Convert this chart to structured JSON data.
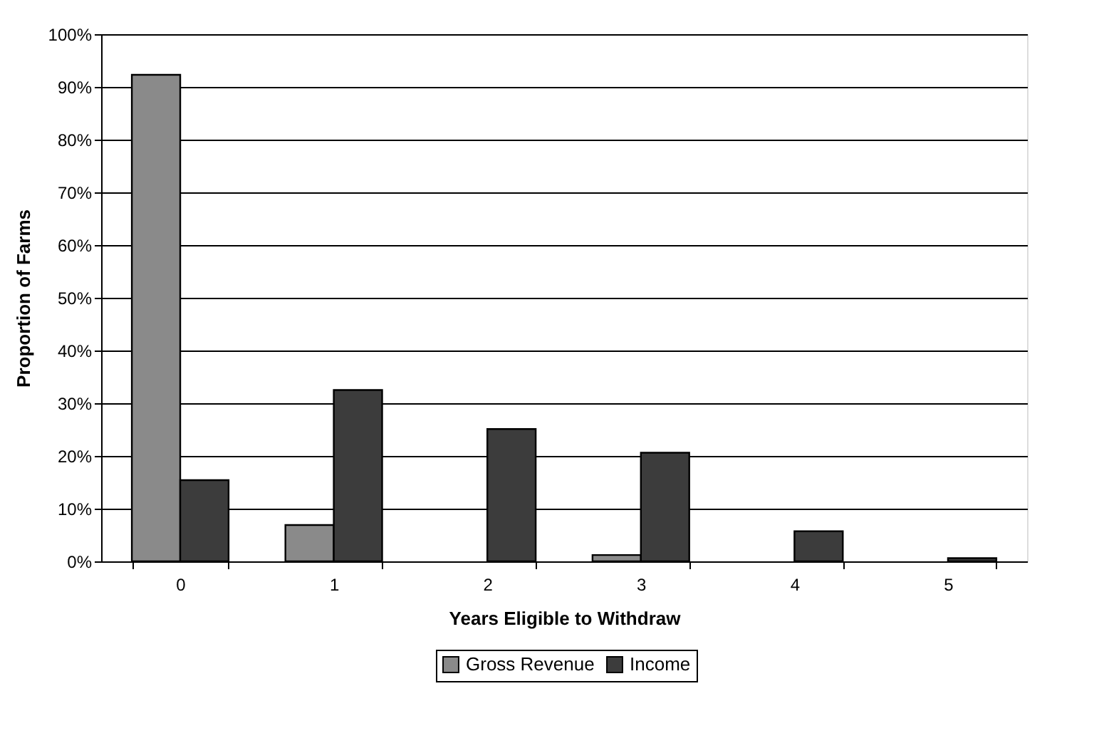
{
  "chart_data": {
    "type": "bar",
    "xlabel": "Years Eligible to Withdraw",
    "ylabel": "Proportion of Farms",
    "categories": [
      "0",
      "1",
      "2",
      "3",
      "4",
      "5"
    ],
    "series": [
      {
        "name": "Gross Revenue",
        "color": "#8a8a8a",
        "values": [
          92.3,
          6.9,
          0,
          1.2,
          0,
          0
        ]
      },
      {
        "name": "Income",
        "color": "#3c3c3c",
        "values": [
          15.4,
          32.5,
          25.1,
          20.6,
          5.7,
          0.6
        ]
      }
    ],
    "ylim": [
      0,
      100
    ],
    "yticks": [
      {
        "value": 0,
        "label": "0%"
      },
      {
        "value": 10,
        "label": "10%"
      },
      {
        "value": 20,
        "label": "20%"
      },
      {
        "value": 30,
        "label": "30%"
      },
      {
        "value": 40,
        "label": "40%"
      },
      {
        "value": 50,
        "label": "50%"
      },
      {
        "value": 60,
        "label": "60%"
      },
      {
        "value": 70,
        "label": "70%"
      },
      {
        "value": 80,
        "label": "80%"
      },
      {
        "value": 90,
        "label": "90%"
      },
      {
        "value": 100,
        "label": "100%"
      }
    ],
    "grid": "y",
    "legend": "bottom"
  }
}
